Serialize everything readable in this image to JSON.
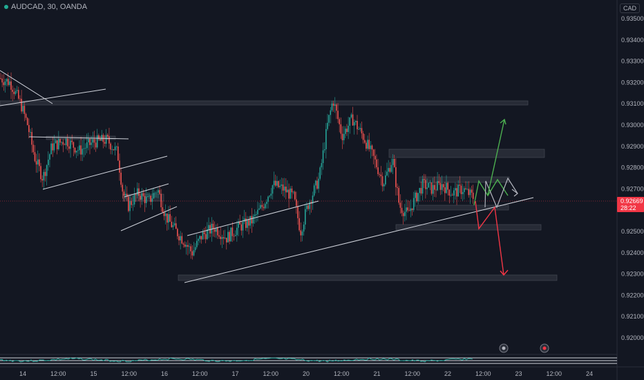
{
  "header": {
    "symbol_label": "AUDCAD, 30, OANDA",
    "currency": "CAD"
  },
  "colors": {
    "background": "#131722",
    "up_candle": "#26a69a",
    "down_candle": "#ef5350",
    "zone_fill": "#2a2e39",
    "zone_stroke": "#4a4e59",
    "trendline": "#d1d4dc",
    "projection_up": "#4caf50",
    "projection_down": "#f23645",
    "projection_neutral": "#b2b5be",
    "price_tag": "#f23645"
  },
  "price_tag": {
    "price": "0.92669",
    "countdown": "28:22"
  },
  "chart_data": {
    "type": "candlestick",
    "ylim": [
      0.9195,
      0.936
    ],
    "y_ticks": [
      "0.93500",
      "0.93400",
      "0.93300",
      "0.93200",
      "0.93100",
      "0.93000",
      "0.92900",
      "0.92800",
      "0.92700",
      "0.92600",
      "0.92500",
      "0.92400",
      "0.92300",
      "0.92200",
      "0.92100",
      "0.92000"
    ],
    "x_ticks": [
      "14",
      "12:00",
      "15",
      "12:00",
      "16",
      "12:00",
      "17",
      "12:00",
      "20",
      "12:00",
      "21",
      "12:00",
      "22",
      "12:00",
      "23",
      "12:00",
      "24"
    ],
    "price_path": [
      [
        0,
        0.9322
      ],
      [
        15,
        0.932
      ],
      [
        30,
        0.931
      ],
      [
        40,
        0.93
      ],
      [
        50,
        0.9285
      ],
      [
        62,
        0.9275
      ],
      [
        75,
        0.929
      ],
      [
        95,
        0.9293
      ],
      [
        115,
        0.9288
      ],
      [
        135,
        0.9292
      ],
      [
        155,
        0.9293
      ],
      [
        170,
        0.9287
      ],
      [
        178,
        0.9268
      ],
      [
        186,
        0.9262
      ],
      [
        200,
        0.9268
      ],
      [
        215,
        0.9264
      ],
      [
        228,
        0.927
      ],
      [
        240,
        0.9257
      ],
      [
        255,
        0.925
      ],
      [
        268,
        0.9245
      ],
      [
        278,
        0.924
      ],
      [
        292,
        0.9248
      ],
      [
        310,
        0.9252
      ],
      [
        328,
        0.9247
      ],
      [
        345,
        0.9252
      ],
      [
        365,
        0.9255
      ],
      [
        380,
        0.9262
      ],
      [
        395,
        0.9272
      ],
      [
        410,
        0.927
      ],
      [
        425,
        0.9266
      ],
      [
        435,
        0.925
      ],
      [
        445,
        0.9262
      ],
      [
        462,
        0.9275
      ],
      [
        474,
        0.93
      ],
      [
        482,
        0.9312
      ],
      [
        495,
        0.9295
      ],
      [
        510,
        0.9303
      ],
      [
        525,
        0.9295
      ],
      [
        540,
        0.9285
      ],
      [
        555,
        0.9273
      ],
      [
        568,
        0.9284
      ],
      [
        578,
        0.9262
      ],
      [
        590,
        0.9258
      ],
      [
        600,
        0.9265
      ],
      [
        612,
        0.9272
      ],
      [
        625,
        0.927
      ],
      [
        640,
        0.9272
      ],
      [
        655,
        0.9268
      ],
      [
        670,
        0.927
      ],
      [
        685,
        0.9266
      ]
    ]
  }
}
